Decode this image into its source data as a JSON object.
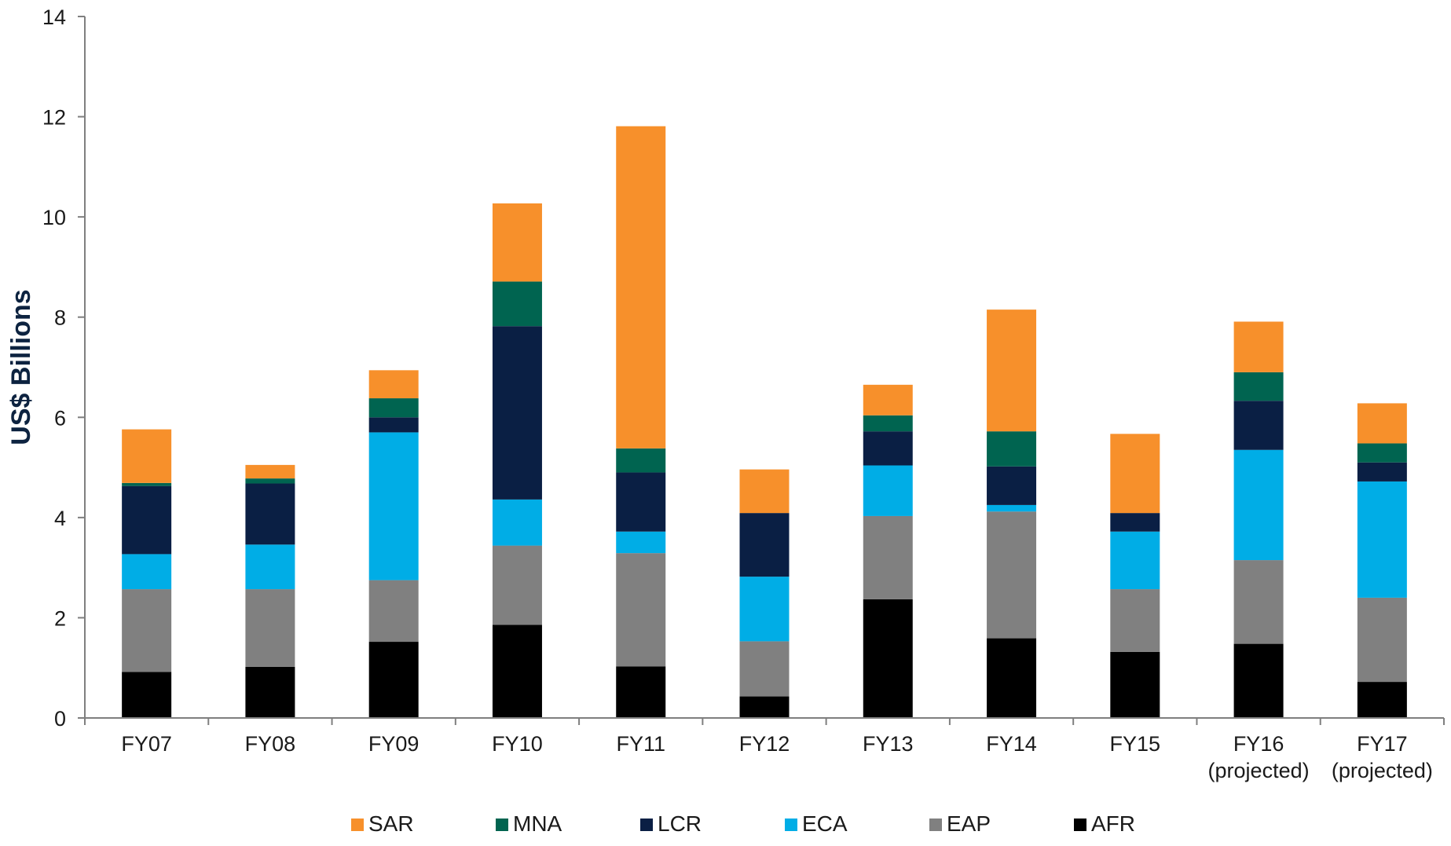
{
  "chart_data": {
    "type": "bar",
    "stacked": true,
    "title": "",
    "xlabel": "",
    "ylabel": "US$ Billions",
    "ylim": [
      0,
      14
    ],
    "yticks": [
      0,
      2,
      4,
      6,
      8,
      10,
      12,
      14
    ],
    "grid": false,
    "legend_position": "bottom",
    "categories": [
      [
        "FY07"
      ],
      [
        "FY08"
      ],
      [
        "FY09"
      ],
      [
        "FY10"
      ],
      [
        "FY11"
      ],
      [
        "FY12"
      ],
      [
        "FY13"
      ],
      [
        "FY14"
      ],
      [
        "FY15"
      ],
      [
        "FY16",
        "(projected)"
      ],
      [
        "FY17",
        "(projected)"
      ]
    ],
    "series": [
      {
        "name": "AFR",
        "color": "#000000",
        "values": [
          0.92,
          1.02,
          1.52,
          1.86,
          1.03,
          0.43,
          2.37,
          1.59,
          1.32,
          1.48,
          0.72
        ]
      },
      {
        "name": "EAP",
        "color": "#808080",
        "values": [
          1.65,
          1.55,
          1.23,
          1.58,
          2.26,
          1.1,
          1.66,
          2.53,
          1.25,
          1.67,
          1.68
        ]
      },
      {
        "name": "ECA",
        "color": "#00ade6",
        "values": [
          0.7,
          0.89,
          2.95,
          0.92,
          0.43,
          1.29,
          1.01,
          0.13,
          1.15,
          2.2,
          2.32
        ]
      },
      {
        "name": "LCR",
        "color": "#0a1f44",
        "values": [
          1.36,
          1.22,
          0.3,
          3.46,
          1.18,
          1.27,
          0.68,
          0.77,
          0.37,
          0.98,
          0.38
        ]
      },
      {
        "name": "MNA",
        "color": "#006450",
        "values": [
          0.06,
          0.1,
          0.38,
          0.89,
          0.48,
          0.0,
          0.32,
          0.7,
          0.0,
          0.57,
          0.38
        ]
      },
      {
        "name": "SAR",
        "color": "#f7902b",
        "values": [
          1.07,
          0.27,
          0.56,
          1.56,
          6.43,
          0.87,
          0.61,
          2.43,
          1.58,
          1.01,
          0.8
        ]
      }
    ],
    "legend_order": [
      "SAR",
      "MNA",
      "LCR",
      "ECA",
      "EAP",
      "AFR"
    ]
  }
}
